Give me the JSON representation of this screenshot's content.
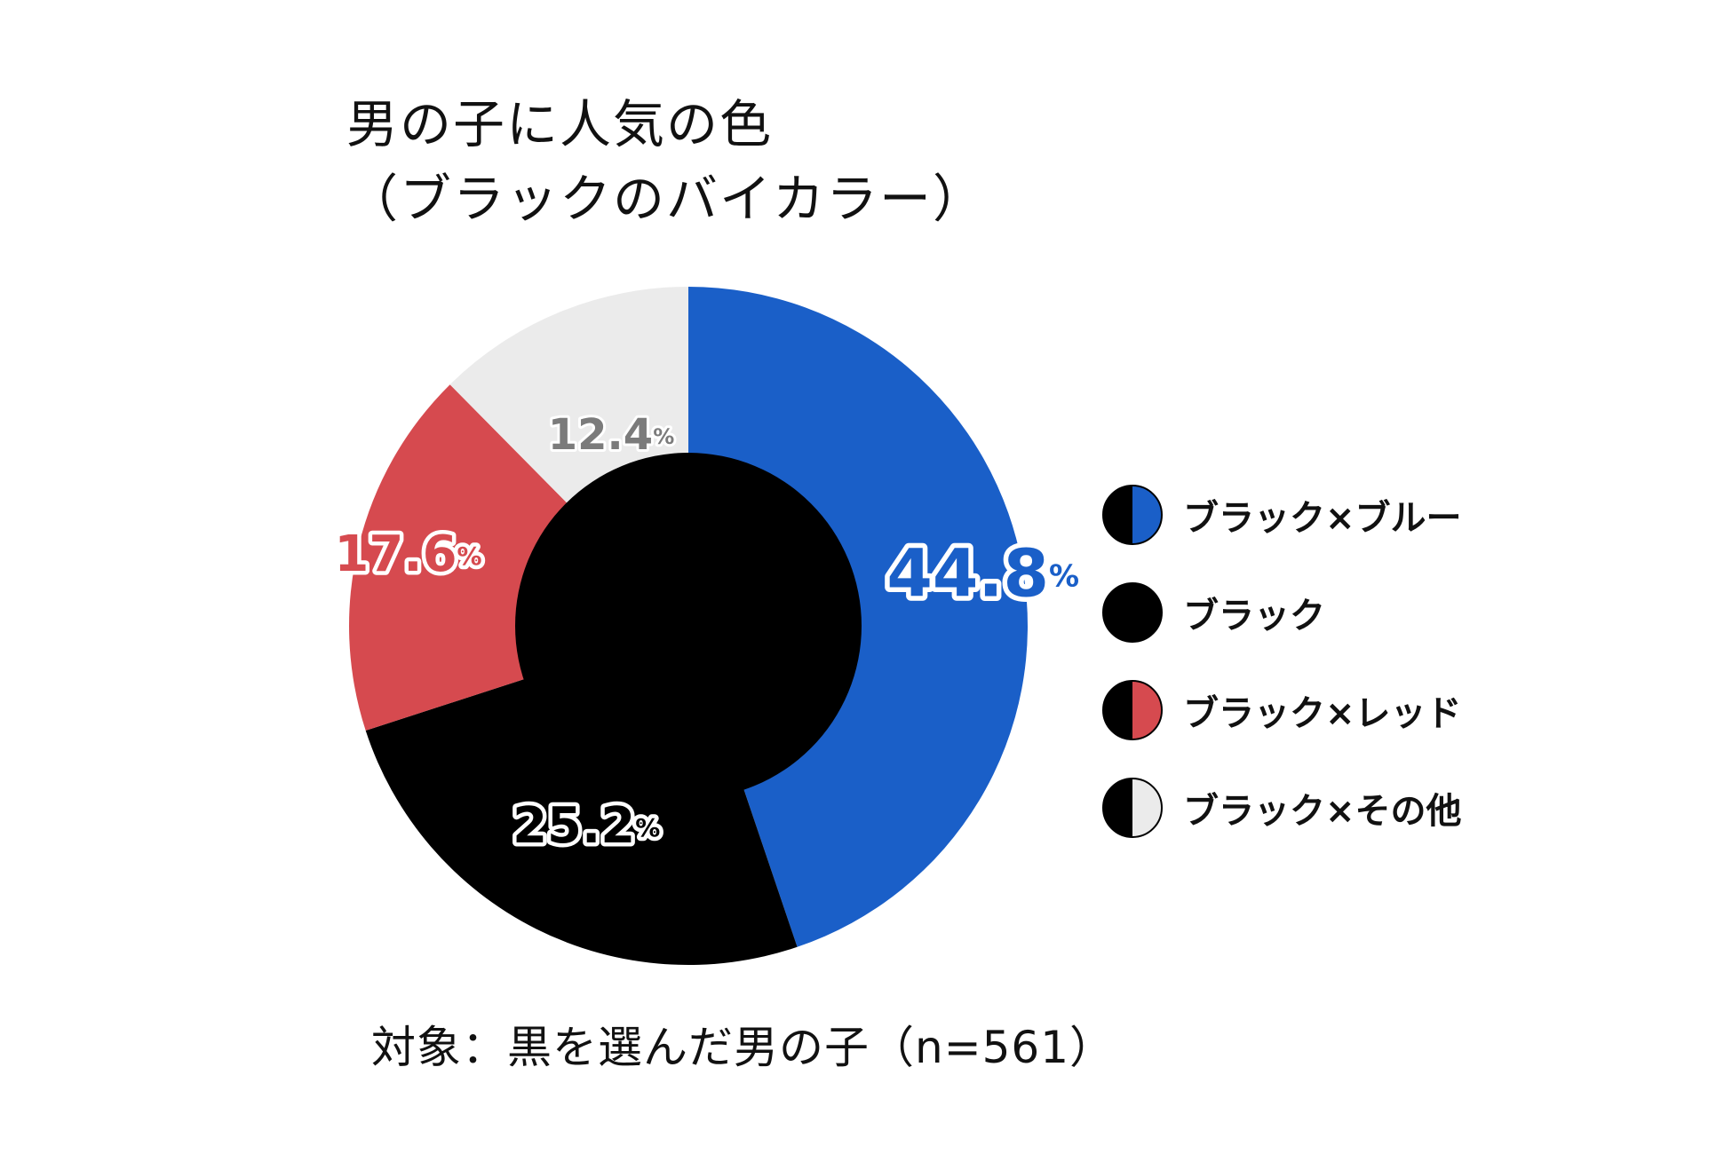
{
  "title": {
    "line1": "男の子に人気の色",
    "line2": "（ブラックのバイカラー）"
  },
  "footnote": "対象：黒を選んだ男の子（n=561）",
  "colors": {
    "blue": "#1a5fc8",
    "black": "#000000",
    "red": "#d64a4f",
    "gray": "#ebebeb",
    "gray_label": "#7b7b7b"
  },
  "chart_data": {
    "type": "pie",
    "title": "男の子に人気の色（ブラックのバイカラー）",
    "categories": [
      "ブラック×ブルー",
      "ブラック",
      "ブラック×レッド",
      "ブラック×その他"
    ],
    "values": [
      44.8,
      25.2,
      17.6,
      12.4
    ],
    "labels": [
      "44.8",
      "25.2",
      "17.6",
      "12.4"
    ],
    "unit": "%",
    "colors": [
      "#1a5fc8",
      "#000000",
      "#d64a4f",
      "#ebebeb"
    ],
    "start_angle": "12 o'clock",
    "direction": "clockwise",
    "legend_position": "right"
  },
  "legend": [
    {
      "label": "ブラック×ブルー",
      "right_color": "#1a5fc8"
    },
    {
      "label": "ブラック",
      "right_color": "#000000"
    },
    {
      "label": "ブラック×レッド",
      "right_color": "#d64a4f"
    },
    {
      "label": "ブラック×その他",
      "right_color": "#ebebeb"
    }
  ]
}
